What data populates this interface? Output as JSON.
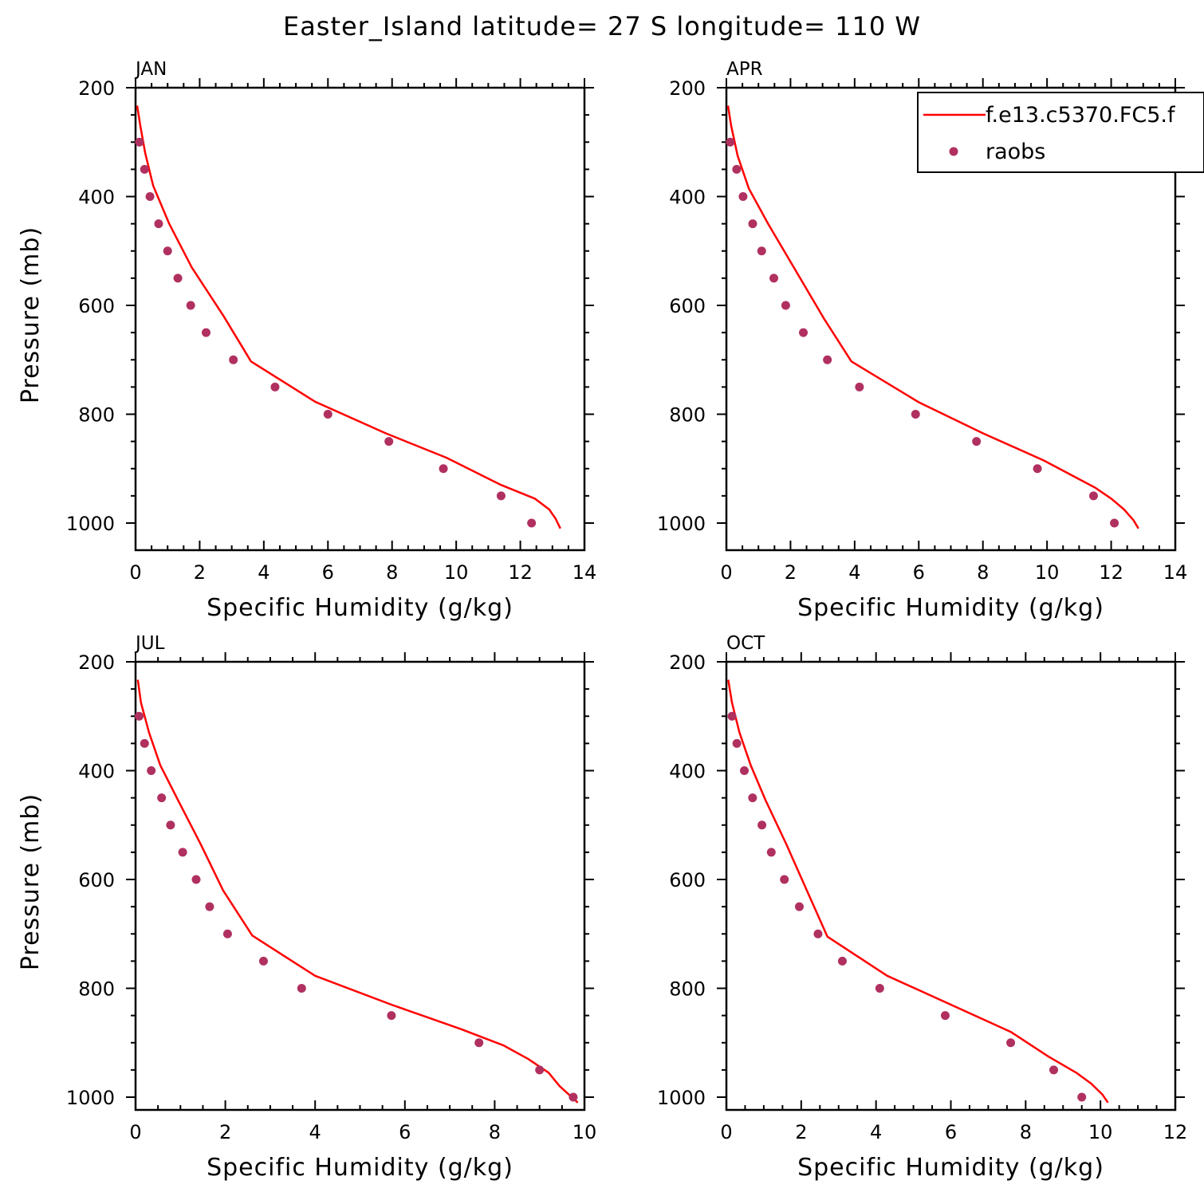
{
  "title": "Easter_Island  latitude= 27 S longitude= 110 W",
  "legend": {
    "model_label": "f.e13.c5370.FC5.f",
    "obs_label": "raobs",
    "model_color": "#ff0000",
    "obs_color": "#b03060"
  },
  "chart_data": [
    {
      "type": "line",
      "panel": "JAN",
      "xlabel": "Specific Humidity (g/kg)",
      "ylabel": "Pressure (mb)",
      "xlim": [
        0,
        14
      ],
      "ylim": [
        200,
        1025
      ],
      "xticks": [
        0,
        2,
        4,
        6,
        8,
        10,
        12,
        14
      ],
      "yticks": [
        200,
        400,
        600,
        800,
        1000
      ],
      "series": [
        {
          "name": "f.e13.c5370.FC5.f",
          "kind": "line",
          "x": [
            0.05,
            0.15,
            0.3,
            0.55,
            1.05,
            1.75,
            2.75,
            3.6,
            5.6,
            7.8,
            9.7,
            11.4,
            12.45,
            12.9,
            13.1,
            13.25
          ],
          "y": [
            233,
            270,
            320,
            380,
            450,
            530,
            620,
            703,
            777,
            835,
            880,
            930,
            955,
            975,
            992,
            1010
          ]
        },
        {
          "name": "raobs",
          "kind": "scatter",
          "x": [
            0.12,
            0.28,
            0.45,
            0.72,
            1.0,
            1.32,
            1.72,
            2.2,
            3.05,
            4.35,
            6.0,
            7.9,
            9.6,
            11.4,
            12.35
          ],
          "y": [
            300,
            350,
            400,
            450,
            500,
            550,
            600,
            650,
            700,
            750,
            800,
            850,
            900,
            950,
            1000
          ]
        }
      ]
    },
    {
      "type": "line",
      "panel": "APR",
      "xlabel": "Specific Humidity (g/kg)",
      "ylabel": "",
      "xlim": [
        0,
        14
      ],
      "ylim": [
        200,
        1025
      ],
      "xticks": [
        0,
        2,
        4,
        6,
        8,
        10,
        12,
        14
      ],
      "yticks": [
        200,
        400,
        600,
        800,
        1000
      ],
      "series": [
        {
          "name": "f.e13.c5370.FC5.f",
          "kind": "line",
          "x": [
            0.05,
            0.15,
            0.35,
            0.7,
            1.3,
            2.1,
            3.05,
            3.9,
            6.0,
            8.0,
            9.9,
            11.5,
            12.0,
            12.4,
            12.7,
            12.85
          ],
          "y": [
            233,
            270,
            325,
            385,
            450,
            530,
            625,
            703,
            778,
            835,
            885,
            935,
            955,
            975,
            995,
            1010
          ]
        },
        {
          "name": "raobs",
          "kind": "scatter",
          "x": [
            0.12,
            0.32,
            0.52,
            0.82,
            1.1,
            1.48,
            1.85,
            2.4,
            3.15,
            4.15,
            5.9,
            7.8,
            9.7,
            11.45,
            12.1
          ],
          "y": [
            300,
            350,
            400,
            450,
            500,
            550,
            600,
            650,
            700,
            750,
            800,
            850,
            900,
            950,
            1000
          ]
        }
      ]
    },
    {
      "type": "line",
      "panel": "JUL",
      "xlabel": "Specific Humidity (g/kg)",
      "ylabel": "Pressure (mb)",
      "xlim": [
        0,
        10
      ],
      "ylim": [
        200,
        1025
      ],
      "xticks": [
        0,
        2,
        4,
        6,
        8,
        10
      ],
      "yticks": [
        200,
        400,
        600,
        800,
        1000
      ],
      "series": [
        {
          "name": "f.e13.c5370.FC5.f",
          "kind": "line",
          "x": [
            0.05,
            0.12,
            0.3,
            0.55,
            0.95,
            1.45,
            1.95,
            2.6,
            4.0,
            5.7,
            7.25,
            8.2,
            8.75,
            9.2,
            9.45,
            9.85
          ],
          "y": [
            233,
            275,
            330,
            390,
            455,
            535,
            620,
            703,
            777,
            830,
            875,
            905,
            930,
            955,
            980,
            1010
          ]
        },
        {
          "name": "raobs",
          "kind": "scatter",
          "x": [
            0.08,
            0.2,
            0.35,
            0.58,
            0.78,
            1.05,
            1.35,
            1.65,
            2.05,
            2.85,
            3.7,
            5.7,
            7.65,
            9.0,
            9.75
          ],
          "y": [
            300,
            350,
            400,
            450,
            500,
            550,
            600,
            650,
            700,
            750,
            800,
            850,
            900,
            950,
            1000
          ]
        }
      ]
    },
    {
      "type": "line",
      "panel": "OCT",
      "xlabel": "Specific Humidity (g/kg)",
      "ylabel": "",
      "xlim": [
        0,
        12
      ],
      "ylim": [
        200,
        1025
      ],
      "xticks": [
        0,
        2,
        4,
        6,
        8,
        10,
        12
      ],
      "yticks": [
        200,
        400,
        600,
        800,
        1000
      ],
      "series": [
        {
          "name": "f.e13.c5370.FC5.f",
          "kind": "line",
          "x": [
            0.05,
            0.15,
            0.35,
            0.65,
            1.05,
            1.6,
            2.15,
            2.7,
            4.3,
            6.0,
            7.6,
            8.6,
            9.35,
            9.75,
            10.05,
            10.2
          ],
          "y": [
            233,
            275,
            330,
            390,
            455,
            535,
            620,
            705,
            777,
            830,
            880,
            925,
            955,
            975,
            995,
            1010
          ]
        },
        {
          "name": "raobs",
          "kind": "scatter",
          "x": [
            0.15,
            0.28,
            0.48,
            0.7,
            0.95,
            1.2,
            1.55,
            1.95,
            2.45,
            3.1,
            4.1,
            5.85,
            7.6,
            8.75,
            9.5
          ],
          "y": [
            300,
            350,
            400,
            450,
            500,
            550,
            600,
            650,
            700,
            750,
            800,
            850,
            900,
            950,
            1000
          ]
        }
      ]
    }
  ]
}
